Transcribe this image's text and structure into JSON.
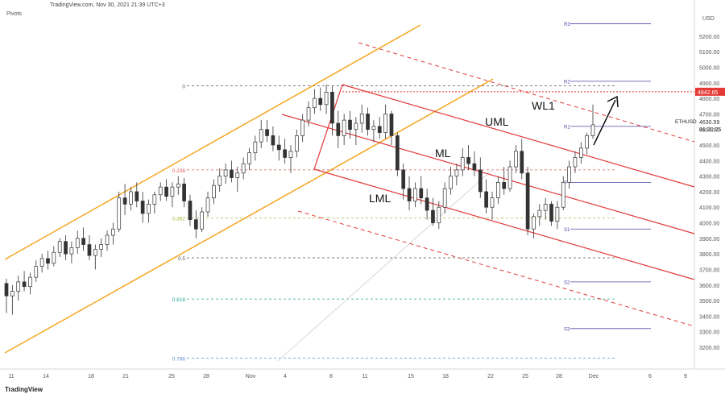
{
  "header": {
    "source_line": "TradingView.com, Nov 30, 2021 21:39 UTC+3",
    "indicator": "Pivots",
    "currency": "USD",
    "logo_text": "TradingView"
  },
  "chart_data": {
    "type": "candlestick",
    "symbol": "ETHUSD",
    "last_price": "4630.59",
    "countdown": "01:20:25",
    "price_marker": "4842.65",
    "y_axis": {
      "ylim": [
        3060,
        5360
      ],
      "ticks": [
        "5200.00",
        "5100.00",
        "5000.00",
        "4900.00",
        "4800.00",
        "4700.00",
        "4600.00",
        "4500.00",
        "4400.00",
        "4300.00",
        "4200.00",
        "4100.00",
        "4000.00",
        "3900.00",
        "3800.00",
        "3700.00",
        "3600.00",
        "3500.00",
        "3400.00",
        "3300.00",
        "3200.00"
      ]
    },
    "x_axis": {
      "labels": [
        "11",
        "14",
        "18",
        "21",
        "25",
        "28",
        "Nov",
        "4",
        "8",
        "11",
        "15",
        "18",
        "22",
        "25",
        "28",
        "Dec",
        "6",
        "9"
      ]
    },
    "fibonacci": [
      {
        "level": "0",
        "price": 4880,
        "color": "#555555"
      },
      {
        "level": "0.236",
        "price": 4340,
        "color": "#e05a5a"
      },
      {
        "level": "0.382",
        "price": 4030,
        "color": "#a8b63a"
      },
      {
        "level": "0.5",
        "price": 3775,
        "color": "#555555"
      },
      {
        "level": "0.618",
        "price": 3510,
        "color": "#26a69a"
      },
      {
        "level": "0.786",
        "price": 3130,
        "color": "#5b8bd6"
      }
    ],
    "pivots": [
      {
        "label": "R3",
        "price": 5280
      },
      {
        "label": "R2",
        "price": 4910
      },
      {
        "label": "R1",
        "price": 4620
      },
      {
        "label": "P",
        "price": 4260
      },
      {
        "label": "S1",
        "price": 3960
      },
      {
        "label": "S2",
        "price": 3620
      },
      {
        "label": "S3",
        "price": 3320
      }
    ],
    "annotations": [
      "UML",
      "ML",
      "LML",
      "WL1"
    ],
    "colors": {
      "up": "#333333",
      "down": "#333333",
      "channel": "#f5a623",
      "pitchfork": "#e23a3a",
      "pivot": "#4a4aa8",
      "marker": "#e53935"
    },
    "candles": [
      [
        3610,
        3640,
        3420,
        3530
      ],
      [
        3530,
        3600,
        3410,
        3560
      ],
      [
        3560,
        3660,
        3500,
        3620
      ],
      [
        3620,
        3690,
        3560,
        3590
      ],
      [
        3590,
        3680,
        3540,
        3650
      ],
      [
        3650,
        3760,
        3620,
        3720
      ],
      [
        3720,
        3800,
        3680,
        3770
      ],
      [
        3770,
        3820,
        3700,
        3740
      ],
      [
        3740,
        3850,
        3720,
        3810
      ],
      [
        3810,
        3900,
        3780,
        3880
      ],
      [
        3880,
        3920,
        3760,
        3800
      ],
      [
        3800,
        3880,
        3740,
        3840
      ],
      [
        3840,
        3950,
        3800,
        3900
      ],
      [
        3900,
        3970,
        3820,
        3860
      ],
      [
        3860,
        3920,
        3760,
        3790
      ],
      [
        3790,
        3860,
        3700,
        3830
      ],
      [
        3830,
        3900,
        3780,
        3860
      ],
      [
        3860,
        3950,
        3820,
        3920
      ],
      [
        3920,
        4000,
        3860,
        3960
      ],
      [
        3960,
        4200,
        3940,
        4160
      ],
      [
        4160,
        4250,
        4050,
        4120
      ],
      [
        4120,
        4230,
        4080,
        4200
      ],
      [
        4200,
        4260,
        4100,
        4140
      ],
      [
        4140,
        4200,
        4000,
        4060
      ],
      [
        4060,
        4150,
        4000,
        4120
      ],
      [
        4120,
        4200,
        4060,
        4180
      ],
      [
        4180,
        4260,
        4140,
        4230
      ],
      [
        4230,
        4280,
        4140,
        4170
      ],
      [
        4170,
        4260,
        4100,
        4230
      ],
      [
        4230,
        4300,
        4180,
        4250
      ],
      [
        4250,
        4290,
        4100,
        4140
      ],
      [
        4140,
        4180,
        3980,
        4020
      ],
      [
        4020,
        4080,
        3900,
        3960
      ],
      [
        3960,
        4100,
        3940,
        4070
      ],
      [
        4070,
        4200,
        4040,
        4160
      ],
      [
        4160,
        4280,
        4120,
        4240
      ],
      [
        4240,
        4350,
        4200,
        4300
      ],
      [
        4300,
        4380,
        4250,
        4340
      ],
      [
        4340,
        4400,
        4260,
        4290
      ],
      [
        4290,
        4360,
        4200,
        4320
      ],
      [
        4320,
        4420,
        4280,
        4380
      ],
      [
        4380,
        4480,
        4340,
        4450
      ],
      [
        4450,
        4560,
        4400,
        4520
      ],
      [
        4520,
        4660,
        4480,
        4600
      ],
      [
        4600,
        4660,
        4520,
        4560
      ],
      [
        4560,
        4620,
        4460,
        4500
      ],
      [
        4500,
        4560,
        4400,
        4470
      ],
      [
        4470,
        4540,
        4380,
        4420
      ],
      [
        4420,
        4500,
        4320,
        4460
      ],
      [
        4460,
        4600,
        4420,
        4560
      ],
      [
        4560,
        4700,
        4520,
        4660
      ],
      [
        4660,
        4780,
        4620,
        4740
      ],
      [
        4740,
        4860,
        4700,
        4800
      ],
      [
        4800,
        4870,
        4720,
        4760
      ],
      [
        4760,
        4890,
        4700,
        4840
      ],
      [
        4840,
        4880,
        4560,
        4640
      ],
      [
        4640,
        4720,
        4480,
        4560
      ],
      [
        4560,
        4700,
        4500,
        4660
      ],
      [
        4660,
        4720,
        4540,
        4600
      ],
      [
        4600,
        4680,
        4500,
        4640
      ],
      [
        4640,
        4760,
        4580,
        4700
      ],
      [
        4700,
        4740,
        4560,
        4600
      ],
      [
        4600,
        4660,
        4520,
        4620
      ],
      [
        4620,
        4680,
        4540,
        4580
      ],
      [
        4580,
        4760,
        4540,
        4700
      ],
      [
        4700,
        4720,
        4500,
        4560
      ],
      [
        4560,
        4580,
        4300,
        4340
      ],
      [
        4340,
        4380,
        4150,
        4220
      ],
      [
        4220,
        4300,
        4080,
        4140
      ],
      [
        4140,
        4260,
        4100,
        4220
      ],
      [
        4220,
        4300,
        4120,
        4160
      ],
      [
        4160,
        4220,
        4020,
        4080
      ],
      [
        4080,
        4160,
        3980,
        4000
      ],
      [
        4000,
        4140,
        3960,
        4100
      ],
      [
        4100,
        4260,
        4060,
        4220
      ],
      [
        4220,
        4360,
        4180,
        4300
      ],
      [
        4300,
        4380,
        4240,
        4340
      ],
      [
        4340,
        4480,
        4300,
        4420
      ],
      [
        4420,
        4500,
        4340,
        4380
      ],
      [
        4380,
        4460,
        4300,
        4340
      ],
      [
        4340,
        4420,
        4160,
        4200
      ],
      [
        4200,
        4280,
        4060,
        4100
      ],
      [
        4100,
        4200,
        4020,
        4160
      ],
      [
        4160,
        4300,
        4120,
        4260
      ],
      [
        4260,
        4360,
        4180,
        4220
      ],
      [
        4220,
        4400,
        4200,
        4360
      ],
      [
        4360,
        4500,
        4320,
        4460
      ],
      [
        4460,
        4540,
        4280,
        4320
      ],
      [
        4320,
        4360,
        3920,
        3960
      ],
      [
        3960,
        4060,
        3900,
        4040
      ],
      [
        4040,
        4120,
        3980,
        4080
      ],
      [
        4080,
        4160,
        4020,
        4120
      ],
      [
        4120,
        4140,
        3980,
        4010
      ],
      [
        4010,
        4140,
        3960,
        4100
      ],
      [
        4100,
        4300,
        4080,
        4260
      ],
      [
        4260,
        4400,
        4220,
        4360
      ],
      [
        4360,
        4460,
        4320,
        4420
      ],
      [
        4420,
        4520,
        4380,
        4480
      ],
      [
        4480,
        4580,
        4440,
        4560
      ],
      [
        4560,
        4760,
        4540,
        4630
      ]
    ]
  }
}
